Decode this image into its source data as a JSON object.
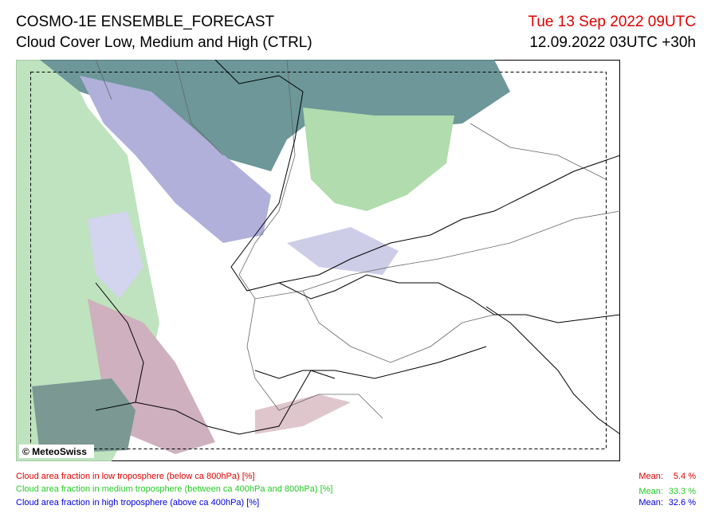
{
  "header": {
    "title": "COSMO-1E ENSEMBLE_FORECAST",
    "subtitle": "Cloud Cover Low, Medium and High (CTRL)",
    "valid_time": "Tue 13 Sep 2022 09UTC",
    "run": "12.09.2022 03UTC +30h"
  },
  "credit": "© MeteoSwiss",
  "legend": [
    {
      "text": "Cloud area fraction in low troposphere (below ca 800hPa) [%]",
      "mean_label": "Mean:",
      "mean": "5.4 %"
    },
    {
      "text": "Cloud area fraction in medium troposphere (between ca 400hPa and 800hPa) [%]",
      "mean_label": "Mean:",
      "mean": "33.3 %"
    },
    {
      "text": "Cloud area fraction in high troposphere (above ca 400hPa) [%]",
      "mean_label": "Mean:",
      "mean": "32.6 %"
    }
  ]
}
